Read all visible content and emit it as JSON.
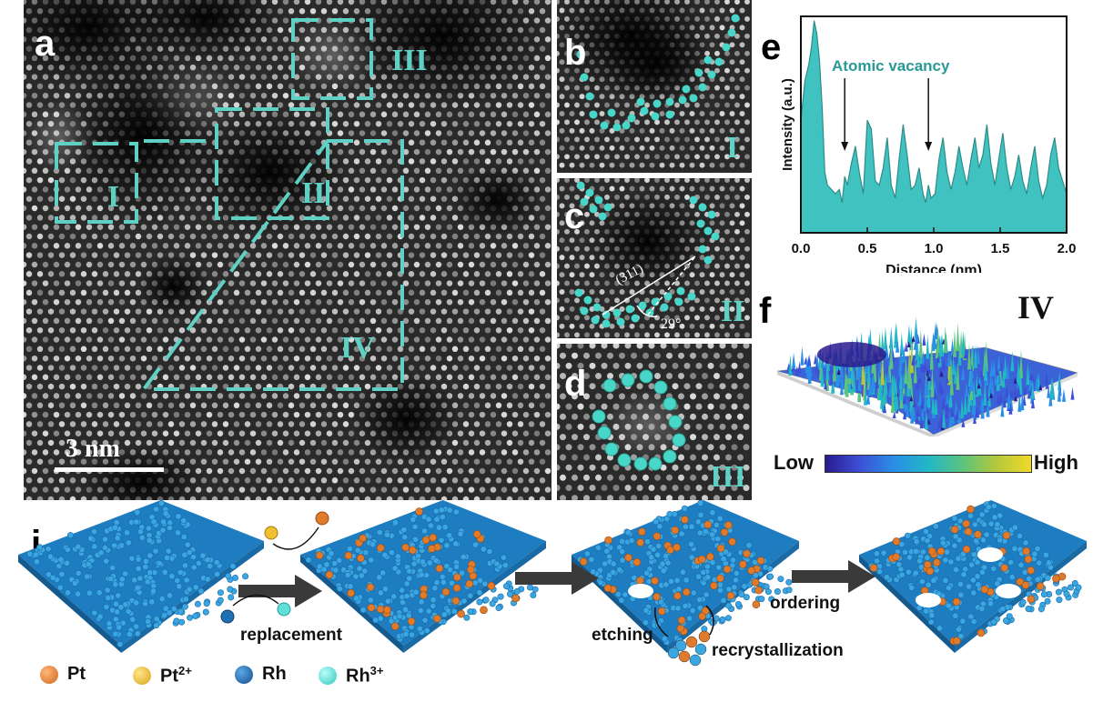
{
  "panels": {
    "a": {
      "label": "a",
      "scale_bar": "3 nm",
      "regions": [
        "I",
        "II",
        "III",
        "IV"
      ]
    },
    "b": {
      "label": "b",
      "region": "I"
    },
    "c": {
      "label": "c",
      "region": "II",
      "plane": "(311)",
      "angle": "29°"
    },
    "d": {
      "label": "d",
      "region": "III"
    },
    "e": {
      "label": "e"
    },
    "f": {
      "label": "f",
      "region": "IV",
      "colorbar_low": "Low",
      "colorbar_high": "High"
    },
    "j": {
      "label": "j"
    }
  },
  "chart_data": {
    "type": "area",
    "title": "",
    "annotation": "Atomic vacancy",
    "xlabel": "Distance (nm)",
    "ylabel": "Intensity (a.u.)",
    "xlim": [
      0,
      2.0
    ],
    "x_ticks": [
      "0.0",
      "0.5",
      "1.0",
      "1.5",
      "2.0"
    ],
    "vacancy_positions_nm": [
      0.33,
      0.96
    ],
    "x": [
      0.0,
      0.03,
      0.06,
      0.08,
      0.1,
      0.12,
      0.14,
      0.16,
      0.18,
      0.2,
      0.23,
      0.26,
      0.29,
      0.31,
      0.33,
      0.35,
      0.38,
      0.41,
      0.44,
      0.47,
      0.5,
      0.53,
      0.56,
      0.59,
      0.62,
      0.65,
      0.68,
      0.71,
      0.74,
      0.77,
      0.8,
      0.83,
      0.86,
      0.89,
      0.92,
      0.94,
      0.96,
      0.98,
      1.01,
      1.04,
      1.07,
      1.1,
      1.13,
      1.16,
      1.19,
      1.22,
      1.25,
      1.28,
      1.31,
      1.34,
      1.37,
      1.4,
      1.43,
      1.46,
      1.49,
      1.52,
      1.55,
      1.58,
      1.61,
      1.64,
      1.67,
      1.7,
      1.73,
      1.76,
      1.79,
      1.82,
      1.85,
      1.88,
      1.91,
      1.94,
      1.97,
      2.0
    ],
    "y": [
      0.52,
      0.7,
      0.78,
      0.86,
      0.98,
      0.92,
      0.8,
      0.58,
      0.28,
      0.22,
      0.2,
      0.18,
      0.2,
      0.14,
      0.26,
      0.22,
      0.32,
      0.4,
      0.28,
      0.18,
      0.52,
      0.48,
      0.24,
      0.22,
      0.3,
      0.44,
      0.22,
      0.16,
      0.34,
      0.5,
      0.36,
      0.2,
      0.22,
      0.3,
      0.18,
      0.14,
      0.22,
      0.16,
      0.18,
      0.34,
      0.44,
      0.28,
      0.2,
      0.28,
      0.4,
      0.3,
      0.22,
      0.34,
      0.44,
      0.3,
      0.36,
      0.5,
      0.32,
      0.22,
      0.34,
      0.46,
      0.3,
      0.2,
      0.26,
      0.36,
      0.24,
      0.18,
      0.3,
      0.4,
      0.24,
      0.16,
      0.22,
      0.36,
      0.44,
      0.3,
      0.24,
      0.18
    ]
  },
  "process": {
    "replacement": "replacement",
    "etching": "etching",
    "recrystallization": "recrystallization",
    "ordering": "ordering"
  },
  "legend": [
    {
      "label": "Pt",
      "color": "#e07b2c"
    },
    {
      "label": "Pt",
      "sup": "2+",
      "color": "#f0c030"
    },
    {
      "label": "Rh",
      "color": "#1f6fb3"
    },
    {
      "label": "Rh",
      "sup": "3+",
      "color": "#5ee0d8"
    }
  ],
  "colors": {
    "accent": "#5ed1c4",
    "area_fill": "#3fc2c0",
    "area_line": "#2e8c88",
    "atom": "#3aa7e3"
  }
}
